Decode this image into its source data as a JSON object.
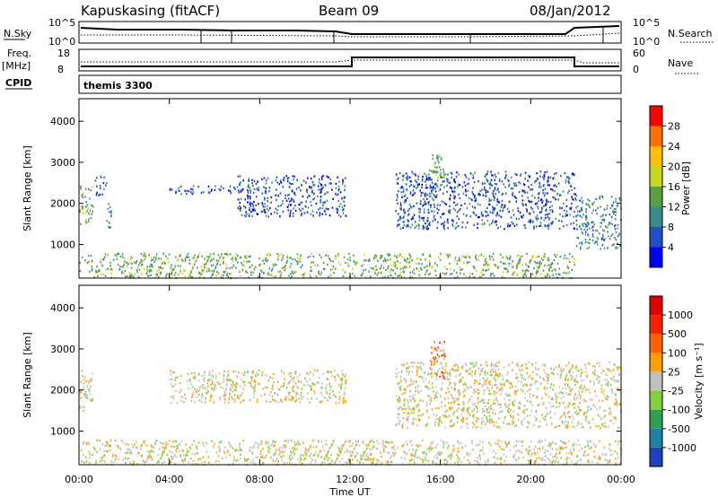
{
  "header": {
    "station": "Kapuskasing (fitACF)",
    "beam": "Beam 09",
    "date": "08/Jan/2012"
  },
  "top_panels": {
    "nsky_label": "N.Sky",
    "nsky_ticks": [
      "10^5",
      "10^0"
    ],
    "nsearch_label": "N.Search",
    "nsearch_ticks": [
      "10^5",
      "10^0"
    ],
    "freq_label": "Freq.",
    "freq_unit": "[MHz]",
    "freq_ticks": [
      "18",
      "8"
    ],
    "nave_label": "Nave",
    "nave_ticks": [
      "60",
      "0"
    ],
    "cpid_label": "CPID",
    "cpid_name": "themis 3300"
  },
  "chart_data": [
    {
      "type": "heatmap",
      "name": "power",
      "xlabel": "Time UT",
      "ylabel": "Slant Range [km]",
      "x_ticks": [
        "00:00",
        "04:00",
        "08:00",
        "12:00",
        "16:00",
        "20:00",
        "00:00"
      ],
      "y_ticks": [
        1000,
        2000,
        3000,
        4000
      ],
      "ylim": [
        180,
        4550
      ],
      "xlim_hours": [
        0,
        24
      ],
      "colorbar": {
        "label": "Power [dB]",
        "ticks": [
          "28",
          "24",
          "20",
          "16",
          "12",
          "8",
          "4"
        ],
        "colors": [
          "#0000ff",
          "#2050c8",
          "#3a8c8c",
          "#5aa040",
          "#c8d820",
          "#ffc000",
          "#ff7000",
          "#ff0000"
        ]
      },
      "regions": [
        {
          "t0": 0.0,
          "t1": 0.6,
          "r0": 1500,
          "r1": 2500,
          "level": 3
        },
        {
          "t0": 0.7,
          "t1": 1.2,
          "r0": 2200,
          "r1": 2700,
          "level": 1
        },
        {
          "t0": 1.2,
          "t1": 1.4,
          "r0": 1300,
          "r1": 2100,
          "level": 2
        },
        {
          "t0": 4.0,
          "t1": 7.0,
          "r0": 2250,
          "r1": 2450,
          "level": 1
        },
        {
          "t0": 7.0,
          "t1": 11.8,
          "r0": 1700,
          "r1": 2700,
          "level": 1
        },
        {
          "t0": 14.0,
          "t1": 22.0,
          "r0": 1400,
          "r1": 2800,
          "level": 1
        },
        {
          "t0": 15.5,
          "t1": 16.2,
          "r0": 2300,
          "r1": 3200,
          "level": 3
        },
        {
          "t0": 22.0,
          "t1": 24.0,
          "r0": 900,
          "r1": 2200,
          "level": 2
        },
        {
          "t0": 0.0,
          "t1": 22.0,
          "r0": 200,
          "r1": 800,
          "level": 3
        }
      ]
    },
    {
      "type": "heatmap",
      "name": "velocity",
      "xlabel": "Time UT",
      "ylabel": "Slant Range [km]",
      "x_ticks": [
        "00:00",
        "04:00",
        "08:00",
        "12:00",
        "16:00",
        "20:00",
        "00:00"
      ],
      "y_ticks": [
        1000,
        2000,
        3000,
        4000
      ],
      "ylim": [
        180,
        4550
      ],
      "xlim_hours": [
        0,
        24
      ],
      "colorbar": {
        "label": "Velocity [m s⁻¹]",
        "ticks": [
          "1000",
          "500",
          "100",
          "25",
          "-25",
          "-100",
          "-500",
          "-1000"
        ],
        "colors": [
          "#2040c0",
          "#2080a0",
          "#30a050",
          "#80d040",
          "#c0c0c0",
          "#ffa000",
          "#ff6000",
          "#ff2000",
          "#e00000"
        ]
      },
      "regions": [
        {
          "t0": 0.0,
          "t1": 0.6,
          "r0": 1500,
          "r1": 2500,
          "level": 4
        },
        {
          "t0": 4.0,
          "t1": 11.8,
          "r0": 1700,
          "r1": 2500,
          "level": 4
        },
        {
          "t0": 14.0,
          "t1": 24.0,
          "r0": 1100,
          "r1": 2700,
          "level": 4
        },
        {
          "t0": 15.5,
          "t1": 16.2,
          "r0": 2300,
          "r1": 3200,
          "level": 6
        },
        {
          "t0": 0.0,
          "t1": 24.0,
          "r0": 200,
          "r1": 800,
          "level": 4
        }
      ]
    }
  ]
}
